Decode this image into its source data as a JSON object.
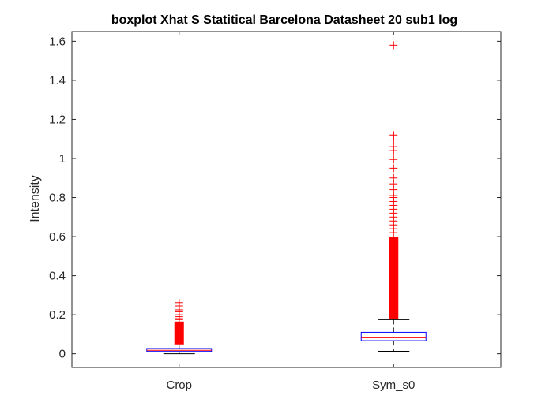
{
  "chart_data": {
    "type": "boxplot",
    "title": "boxplot Xhat S Statitical Barcelona Datasheet 20 sub1 log",
    "xlabel": "",
    "ylabel": "Intensity",
    "ylim": [
      -0.07,
      1.65
    ],
    "yticks": [
      0,
      0.2,
      0.4,
      0.6,
      0.8,
      1,
      1.2,
      1.4,
      1.6
    ],
    "ytick_labels": [
      "0",
      "0.2",
      "0.4",
      "0.6",
      "0.8",
      "1",
      "1.2",
      "1.4",
      "1.6"
    ],
    "categories": [
      "Crop",
      "Sym_s0"
    ],
    "grid": false,
    "boxes": [
      {
        "name": "Crop",
        "lower_whisker": 0.0,
        "q1": 0.012,
        "median": 0.018,
        "q3": 0.027,
        "upper_whisker": 0.045,
        "outliers_dense_range": [
          0.048,
          0.165
        ],
        "outliers": [
          0.175,
          0.18,
          0.19,
          0.2,
          0.215,
          0.225,
          0.235,
          0.245,
          0.255,
          0.262
        ]
      },
      {
        "name": "Sym_s0",
        "lower_whisker": 0.013,
        "q1": 0.067,
        "median": 0.085,
        "q3": 0.11,
        "upper_whisker": 0.175,
        "outliers_dense_range": [
          0.18,
          0.6
        ],
        "outliers": [
          0.62,
          0.64,
          0.66,
          0.68,
          0.7,
          0.72,
          0.74,
          0.76,
          0.78,
          0.8,
          0.81,
          0.84,
          0.87,
          0.9,
          0.95,
          0.995,
          1.04,
          1.06,
          1.095,
          1.115,
          1.12,
          1.58
        ]
      }
    ],
    "colors": {
      "box": "#0000ff",
      "median": "#ff0000",
      "whisker": "#000000",
      "outlier": "#ff0000",
      "axes": "#262626"
    }
  }
}
